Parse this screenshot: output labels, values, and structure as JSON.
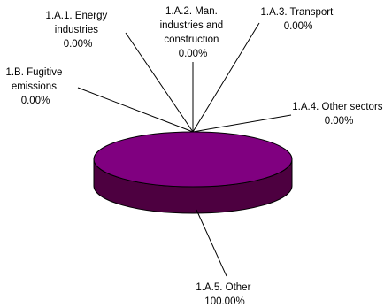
{
  "chart_data": {
    "type": "pie",
    "style": "3d",
    "title": "",
    "slices": [
      {
        "label_lines": [
          "1.A.1. Energy",
          "industries"
        ],
        "value_label": "0.00%",
        "value": 0.0
      },
      {
        "label_lines": [
          "1.A.2. Man.",
          "industries and",
          "construction"
        ],
        "value_label": "0.00%",
        "value": 0.0
      },
      {
        "label_lines": [
          "1.A.3. Transport"
        ],
        "value_label": "0.00%",
        "value": 0.0
      },
      {
        "label_lines": [
          "1.B. Fugitive",
          "emissions"
        ],
        "value_label": "0.00%",
        "value": 0.0
      },
      {
        "label_lines": [
          "1.A.4. Other sectors"
        ],
        "value_label": "0.00%",
        "value": 0.0
      },
      {
        "label_lines": [
          "1.A.5. Other"
        ],
        "value_label": "100.00%",
        "value": 100.0
      }
    ],
    "colors": {
      "top": "#800080",
      "side": "#4d0040",
      "outline": "#000000"
    },
    "legend": "none"
  }
}
